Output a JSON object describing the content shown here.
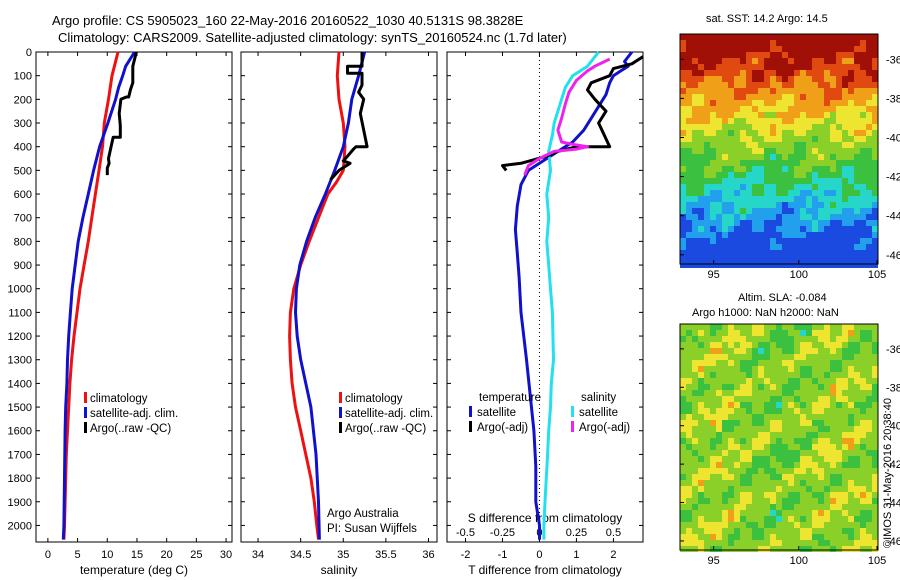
{
  "header": {
    "title1": "Argo profile: CS 5905023_160 22-May-2016 20160522_1030 40.5131S 98.3828E",
    "title2": "Climatology: CARS2009. Satellite-adjusted climatology: synTS_20160524.nc (1.7d later)"
  },
  "colors": {
    "climatology": "#ee1111",
    "satellite": "#1111cc",
    "argo": "#000000",
    "sal_satellite": "#22e0ee",
    "sal_argo": "#ee22ee"
  },
  "chart_data": [
    {
      "type": "line",
      "xlabel": "temperature (deg C)",
      "xlim": [
        -2,
        31
      ],
      "ylim": [
        0,
        2070
      ],
      "xticks": [
        "0",
        "5",
        "10",
        "15",
        "20",
        "25",
        "30"
      ],
      "yticks": [
        "0",
        "100",
        "200",
        "300",
        "400",
        "500",
        "600",
        "700",
        "800",
        "900",
        "1000",
        "1100",
        "1200",
        "1300",
        "1400",
        "1500",
        "1600",
        "1700",
        "1800",
        "1900",
        "2000"
      ],
      "series": [
        {
          "name": "climatology",
          "color": "#ee1111",
          "x": [
            11.8,
            10.8,
            10.2,
            9.5,
            9.2,
            8.6,
            8.0,
            7.4,
            6.8,
            6.1,
            5.4,
            4.9,
            4.4,
            4.0,
            3.7,
            3.5,
            3.3,
            3.1,
            3.0,
            2.9,
            2.8,
            2.7
          ],
          "y": [
            0,
            100,
            200,
            300,
            400,
            500,
            600,
            700,
            800,
            900,
            1000,
            1100,
            1200,
            1300,
            1400,
            1500,
            1600,
            1700,
            1800,
            1900,
            2000,
            2060
          ]
        },
        {
          "name": "satellite-adj. clim.",
          "color": "#1111cc",
          "x": [
            14.6,
            13.1,
            12.6,
            11.9,
            11.4,
            10.1,
            8.7,
            7.7,
            6.8,
            5.9,
            5.1,
            4.6,
            4.1,
            3.8,
            3.5,
            3.3,
            3.2,
            3.0,
            2.9,
            2.8,
            2.7,
            2.6
          ],
          "y": [
            0,
            60,
            100,
            150,
            200,
            300,
            400,
            500,
            600,
            700,
            800,
            900,
            1000,
            1100,
            1200,
            1300,
            1400,
            1500,
            1600,
            1800,
            2000,
            2060
          ]
        },
        {
          "name": "Argo(..raw -QC)",
          "color": "#000000",
          "x": [
            14.9,
            14.6,
            14.3,
            14.3,
            13.9,
            13.6,
            13.2,
            12.3,
            12.0,
            12.2,
            12.2,
            11.0,
            10.6,
            10.2,
            10.3,
            10.0,
            10.0
          ],
          "y": [
            0,
            30,
            60,
            130,
            160,
            190,
            190,
            200,
            260,
            310,
            360,
            360,
            405,
            450,
            470,
            490,
            520
          ]
        }
      ],
      "legend": [
        "climatology",
        "satellite-adj. clim.",
        "Argo(..raw -QC)"
      ]
    },
    {
      "type": "line",
      "xlabel": "salinity",
      "xlim": [
        33.8,
        36.1
      ],
      "ylim": [
        0,
        2070
      ],
      "xticks": [
        "34",
        "34.5",
        "35",
        "35.5",
        "36"
      ],
      "series": [
        {
          "name": "climatology",
          "color": "#ee1111",
          "x": [
            34.95,
            34.93,
            34.95,
            35.0,
            35.02,
            35.0,
            34.92,
            34.82,
            34.71,
            34.6,
            34.5,
            34.42,
            34.38,
            34.37,
            34.38,
            34.4,
            34.44,
            34.5,
            34.56,
            34.62,
            34.66,
            34.69,
            34.71
          ],
          "y": [
            0,
            100,
            200,
            300,
            400,
            500,
            550,
            600,
            700,
            800,
            900,
            1000,
            1100,
            1200,
            1300,
            1400,
            1500,
            1600,
            1700,
            1800,
            1900,
            2000,
            2060
          ]
        },
        {
          "name": "satellite-adj. clim.",
          "color": "#1111cc",
          "x": [
            35.25,
            35.18,
            35.1,
            35.06,
            35.0,
            34.9,
            34.79,
            34.67,
            34.57,
            34.49,
            34.45,
            34.44,
            34.46,
            34.5,
            34.56,
            34.62,
            34.68,
            34.71,
            34.72
          ],
          "y": [
            0,
            100,
            200,
            300,
            400,
            500,
            600,
            700,
            800,
            900,
            1000,
            1100,
            1200,
            1300,
            1400,
            1500,
            1700,
            1900,
            2060
          ]
        },
        {
          "name": "Argo(..raw -QC)",
          "color": "#000000",
          "x": [
            35.22,
            35.22,
            35.05,
            35.05,
            35.22,
            35.22,
            35.18,
            35.24,
            35.2,
            35.28,
            35.15,
            35.12,
            35.05,
            35.0,
            35.08,
            34.95,
            34.85
          ],
          "y": [
            0,
            60,
            60,
            90,
            90,
            140,
            170,
            200,
            260,
            400,
            400,
            410,
            440,
            460,
            470,
            500,
            540
          ]
        }
      ],
      "legend": [
        "climatology",
        "satellite-adj. clim.",
        "Argo(..raw -QC)"
      ],
      "annotations": [
        "Argo Australia",
        "PI: Susan Wijffels"
      ]
    },
    {
      "type": "line",
      "xlabel": "T difference from climatology",
      "toplabel": "S difference from climatology",
      "xlim": [
        -2.5,
        2.8
      ],
      "ylim": [
        0,
        2070
      ],
      "xticks": [
        "-2",
        "-1",
        "0",
        "1",
        "2"
      ],
      "topticks": [
        "-0.5",
        "-0.25",
        "0",
        "0.25",
        "0.5"
      ],
      "series": [
        {
          "name": "temperature satellite",
          "color": "#1111cc",
          "x": [
            2.5,
            2.3,
            2.4,
            2.2,
            2.0,
            1.9,
            1.8,
            1.6,
            1.4,
            1.2,
            0.9,
            0.5,
            0.2,
            -0.1,
            -0.3,
            -0.5,
            -0.6,
            -0.65,
            -0.6,
            -0.55,
            -0.5,
            -0.35,
            -0.25,
            -0.15,
            -0.1,
            -0.1,
            0.0,
            0.0
          ],
          "y": [
            0,
            40,
            60,
            80,
            100,
            130,
            180,
            230,
            280,
            330,
            380,
            420,
            450,
            480,
            500,
            560,
            650,
            750,
            850,
            950,
            1100,
            1300,
            1450,
            1600,
            1750,
            1900,
            2000,
            2060
          ]
        },
        {
          "name": "salinity satellite",
          "color": "#22e0ee",
          "x": [
            1.6,
            1.3,
            0.9,
            0.7,
            0.6,
            0.5,
            0.4,
            0.35,
            0.25,
            0.3,
            0.2,
            0.25,
            0.2,
            0.25,
            0.3,
            0.35,
            0.38,
            0.32,
            0.3,
            0.25,
            0.22,
            0.15,
            0.12,
            0.12
          ],
          "y": [
            0,
            60,
            100,
            150,
            200,
            250,
            300,
            350,
            420,
            500,
            600,
            700,
            800,
            900,
            1000,
            1100,
            1300,
            1400,
            1500,
            1600,
            1700,
            1900,
            2000,
            2060
          ]
        },
        {
          "name": "temperature Argo(-adj)",
          "color": "#000000",
          "x": [
            2.8,
            2.5,
            2.0,
            1.9,
            1.4,
            1.3,
            1.5,
            1.8,
            1.6,
            1.9,
            1.0,
            0.5,
            0.2,
            -0.5,
            -1.0,
            -0.9
          ],
          "y": [
            20,
            50,
            70,
            100,
            130,
            160,
            200,
            250,
            300,
            400,
            400,
            420,
            440,
            470,
            480,
            500
          ]
        },
        {
          "name": "salinity Argo(-adj)",
          "color": "#ee22ee",
          "x": [
            1.9,
            1.5,
            1.3,
            1.0,
            0.8,
            0.7,
            0.6,
            0.5,
            0.6,
            0.9,
            1.3,
            1.0,
            0.4,
            0.0,
            -0.3,
            -0.4
          ],
          "y": [
            30,
            60,
            80,
            120,
            170,
            220,
            280,
            330,
            380,
            390,
            400,
            410,
            420,
            450,
            480,
            520
          ]
        }
      ],
      "legend": {
        "temperature": "temperature",
        "salinity": "salinity",
        "sat": "satellite",
        "argo": "Argo(-adj)"
      }
    }
  ],
  "maps": {
    "sst": {
      "title": "sat. SST: 14.2 Argo: 14.5",
      "xticks": [
        "95",
        "100",
        "105"
      ],
      "yticks": [
        "-36",
        "-38",
        "-40",
        "-42",
        "-44",
        "-46"
      ]
    },
    "sla": {
      "title1": "Altim. SLA: -0.084",
      "title2": "Argo h1000: NaN h2000: NaN",
      "xticks": [
        "95",
        "100",
        "105"
      ],
      "yticks": [
        "-36",
        "-38",
        "-40",
        "-42",
        "-44",
        "-46"
      ]
    }
  },
  "timestamp": "©IMOS 31-May-2016 20:38:40"
}
